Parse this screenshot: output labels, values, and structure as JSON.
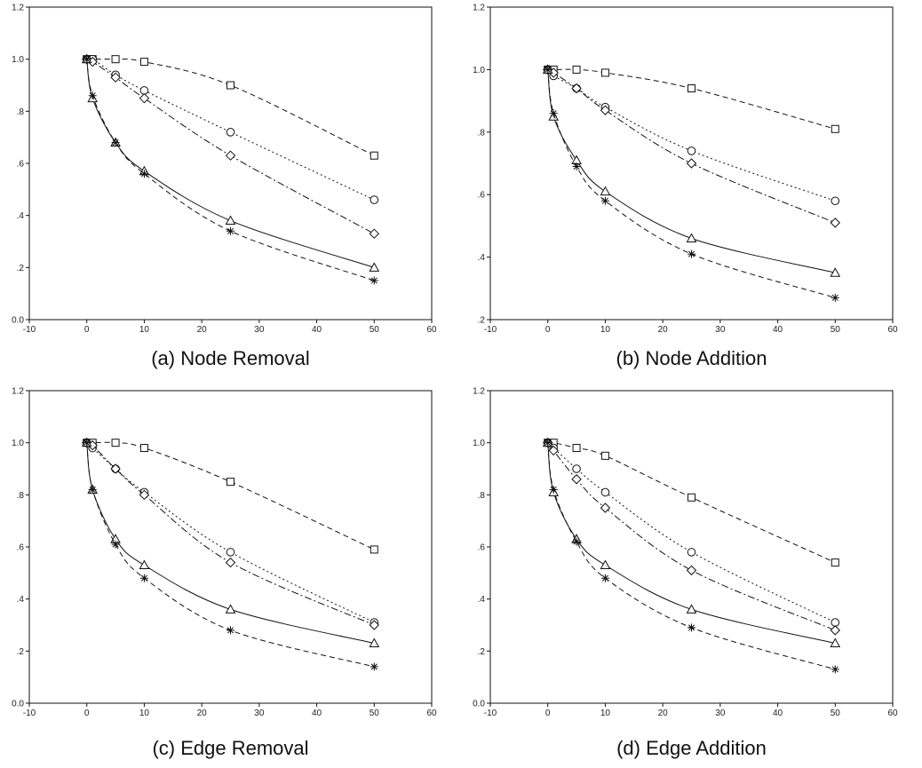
{
  "chart_data": [
    {
      "type": "line",
      "caption": "(a) Node Removal",
      "xlim": [
        -10,
        60
      ],
      "ylim": [
        0.0,
        1.2
      ],
      "xticks": [
        "-10",
        "0",
        "10",
        "20",
        "30",
        "40",
        "50",
        "60"
      ],
      "yticks": [
        "0.0",
        ".2",
        ".4",
        ".6",
        ".8",
        "1.0",
        "1.2"
      ],
      "x": [
        0,
        1,
        5,
        10,
        25,
        50
      ],
      "series": [
        {
          "marker": "square",
          "line": "dashed",
          "values": [
            1.0,
            1.0,
            1.0,
            0.99,
            0.9,
            0.63
          ]
        },
        {
          "marker": "circle",
          "line": "dotted",
          "values": [
            1.0,
            1.0,
            0.94,
            0.88,
            0.72,
            0.46
          ]
        },
        {
          "marker": "diamond",
          "line": "dashdot",
          "values": [
            1.0,
            0.99,
            0.93,
            0.85,
            0.63,
            0.33
          ]
        },
        {
          "marker": "triangle",
          "line": "solid",
          "values": [
            1.0,
            0.85,
            0.68,
            0.57,
            0.38,
            0.2
          ]
        },
        {
          "marker": "star",
          "line": "dashed",
          "values": [
            1.0,
            0.86,
            0.68,
            0.56,
            0.34,
            0.15
          ]
        }
      ]
    },
    {
      "type": "line",
      "caption": "(b) Node Addition",
      "xlim": [
        -10,
        60
      ],
      "ylim": [
        0.2,
        1.2
      ],
      "xticks": [
        "-10",
        "0",
        "10",
        "20",
        "30",
        "40",
        "50",
        "60"
      ],
      "yticks": [
        ".2",
        ".4",
        ".6",
        ".8",
        "1.0",
        "1.2"
      ],
      "x": [
        0,
        1,
        5,
        10,
        25,
        50
      ],
      "series": [
        {
          "marker": "square",
          "line": "dashed",
          "values": [
            1.0,
            1.0,
            1.0,
            0.99,
            0.94,
            0.81
          ]
        },
        {
          "marker": "circle",
          "line": "dotted",
          "values": [
            1.0,
            0.98,
            0.94,
            0.88,
            0.74,
            0.58
          ]
        },
        {
          "marker": "diamond",
          "line": "dashdot",
          "values": [
            1.0,
            0.99,
            0.94,
            0.87,
            0.7,
            0.51
          ]
        },
        {
          "marker": "triangle",
          "line": "solid",
          "values": [
            1.0,
            0.85,
            0.71,
            0.61,
            0.46,
            0.35
          ]
        },
        {
          "marker": "star",
          "line": "dashed",
          "values": [
            1.0,
            0.86,
            0.69,
            0.58,
            0.41,
            0.27
          ]
        }
      ]
    },
    {
      "type": "line",
      "caption": "(c) Edge Removal",
      "xlim": [
        -10,
        60
      ],
      "ylim": [
        0.0,
        1.2
      ],
      "xticks": [
        "-10",
        "0",
        "10",
        "20",
        "30",
        "40",
        "50",
        "60"
      ],
      "yticks": [
        "0.0",
        ".2",
        ".4",
        ".6",
        ".8",
        "1.0",
        "1.2"
      ],
      "x": [
        0,
        1,
        5,
        10,
        25,
        50
      ],
      "series": [
        {
          "marker": "square",
          "line": "dashed",
          "values": [
            1.0,
            1.0,
            1.0,
            0.98,
            0.85,
            0.59
          ]
        },
        {
          "marker": "circle",
          "line": "dotted",
          "values": [
            1.0,
            0.98,
            0.9,
            0.81,
            0.58,
            0.31
          ]
        },
        {
          "marker": "diamond",
          "line": "dashdot",
          "values": [
            1.0,
            0.99,
            0.9,
            0.8,
            0.54,
            0.3
          ]
        },
        {
          "marker": "triangle",
          "line": "solid",
          "values": [
            1.0,
            0.82,
            0.63,
            0.53,
            0.36,
            0.23
          ]
        },
        {
          "marker": "star",
          "line": "dashed",
          "values": [
            1.0,
            0.82,
            0.61,
            0.48,
            0.28,
            0.14
          ]
        }
      ]
    },
    {
      "type": "line",
      "caption": "(d) Edge Addition",
      "xlim": [
        -10,
        60
      ],
      "ylim": [
        0.0,
        1.2
      ],
      "xticks": [
        "-10",
        "0",
        "10",
        "20",
        "30",
        "40",
        "50",
        "60"
      ],
      "yticks": [
        "0.0",
        ".2",
        ".4",
        ".6",
        ".8",
        "1.0",
        "1.2"
      ],
      "x": [
        0,
        1,
        5,
        10,
        25,
        50
      ],
      "series": [
        {
          "marker": "square",
          "line": "dashed",
          "values": [
            1.0,
            1.0,
            0.98,
            0.95,
            0.79,
            0.54
          ]
        },
        {
          "marker": "circle",
          "line": "dotted",
          "values": [
            1.0,
            0.98,
            0.9,
            0.81,
            0.58,
            0.31
          ]
        },
        {
          "marker": "diamond",
          "line": "dashdot",
          "values": [
            1.0,
            0.97,
            0.86,
            0.75,
            0.51,
            0.28
          ]
        },
        {
          "marker": "triangle",
          "line": "solid",
          "values": [
            1.0,
            0.81,
            0.63,
            0.53,
            0.36,
            0.23
          ]
        },
        {
          "marker": "star",
          "line": "dashed",
          "values": [
            1.0,
            0.82,
            0.62,
            0.48,
            0.29,
            0.13
          ]
        }
      ]
    }
  ]
}
